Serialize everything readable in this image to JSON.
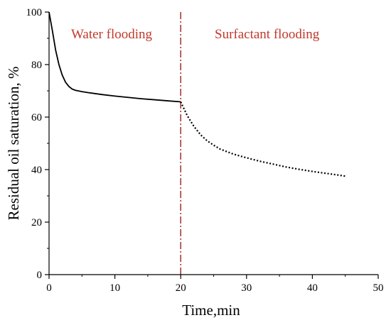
{
  "colors": {
    "axis": "#000000",
    "water_series": "#000000",
    "surfactant_series": "#000000",
    "divider": "#a83a32",
    "region_label": "#c0392b"
  },
  "chart_data": {
    "type": "line",
    "xlabel": "Time,min",
    "ylabel": "Residual oil saturation, %",
    "xlim": [
      0,
      50
    ],
    "ylim": [
      0,
      100
    ],
    "x_ticks": [
      "0",
      "10",
      "20",
      "30",
      "40",
      "50"
    ],
    "y_ticks": [
      "0",
      "20",
      "40",
      "60",
      "80",
      "100"
    ],
    "grid": false,
    "divider_x": 20,
    "annotations": {
      "water": "Water flooding",
      "surfactant": "Surfactant flooding"
    },
    "series": [
      {
        "style": "solid",
        "x": [
          0,
          0.5,
          1,
          1.5,
          2,
          2.5,
          3,
          3.5,
          4,
          5,
          6,
          8,
          10,
          12,
          14,
          16,
          18,
          20
        ],
        "y": [
          100,
          93,
          85.5,
          80,
          76,
          73.3,
          71.7,
          70.7,
          70.2,
          69.7,
          69.3,
          68.6,
          68.0,
          67.5,
          67.0,
          66.6,
          66.2,
          65.8
        ]
      },
      {
        "style": "dotted",
        "x": [
          20,
          21,
          22,
          23,
          24,
          25,
          26,
          28,
          30,
          32,
          34,
          36,
          38,
          40,
          42,
          44,
          45
        ],
        "y": [
          65.8,
          60.5,
          56.5,
          53.3,
          51,
          49.3,
          47.8,
          45.9,
          44.5,
          43.2,
          42.1,
          41.0,
          40.1,
          39.3,
          38.6,
          37.9,
          37.5
        ]
      }
    ]
  }
}
